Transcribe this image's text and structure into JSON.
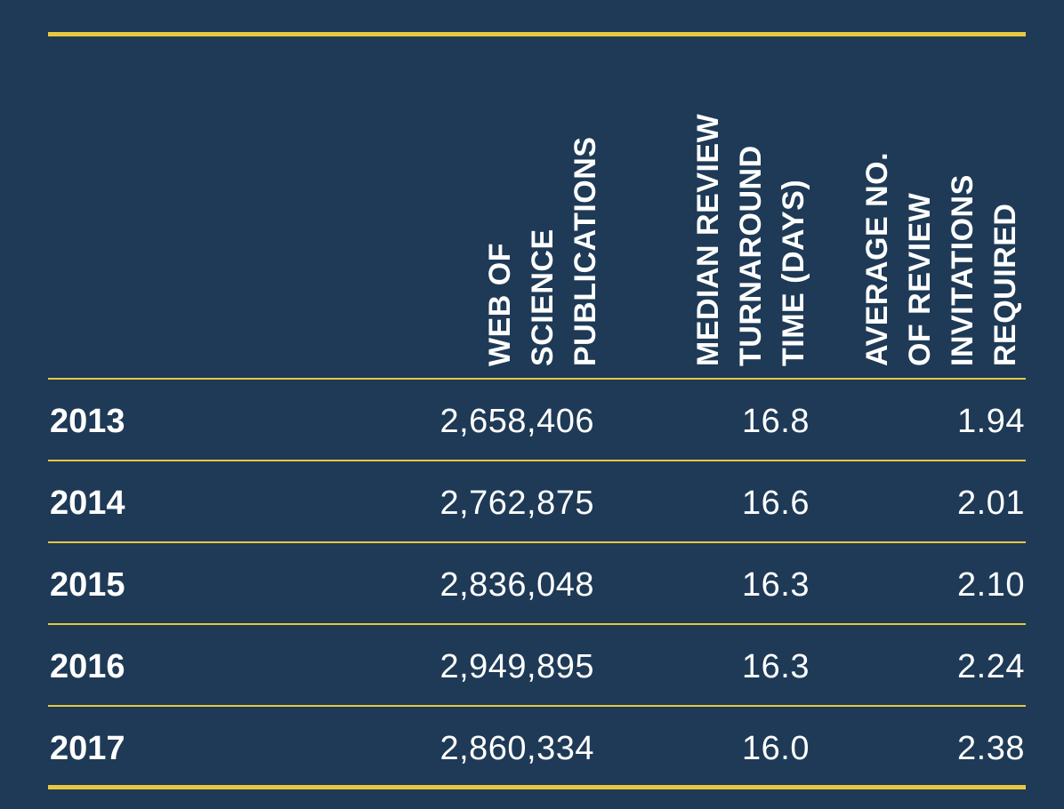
{
  "colors": {
    "background": "#1e3a56",
    "rule": "#e8c840",
    "text": "#ffffff"
  },
  "chart_data": {
    "type": "table",
    "columns": [
      {
        "key": "publications",
        "lines": [
          "WEB OF",
          "SCIENCE",
          "PUBLICATIONS"
        ]
      },
      {
        "key": "turnaround",
        "lines": [
          "MEDIAN REVIEW",
          "TURNAROUND",
          "TIME (DAYS)"
        ]
      },
      {
        "key": "invitations",
        "lines": [
          "AVERAGE NO.",
          "OF REVIEW",
          "INVITATIONS",
          "REQUIRED"
        ]
      }
    ],
    "rows": [
      {
        "year": "2013",
        "publications": "2,658,406",
        "turnaround": "16.8",
        "invitations": "1.94"
      },
      {
        "year": "2014",
        "publications": "2,762,875",
        "turnaround": "16.6",
        "invitations": "2.01"
      },
      {
        "year": "2015",
        "publications": "2,836,048",
        "turnaround": "16.3",
        "invitations": "2.10"
      },
      {
        "year": "2016",
        "publications": "2,949,895",
        "turnaround": "16.3",
        "invitations": "2.24"
      },
      {
        "year": "2017",
        "publications": "2,860,334",
        "turnaround": "16.0",
        "invitations": "2.38"
      }
    ]
  }
}
